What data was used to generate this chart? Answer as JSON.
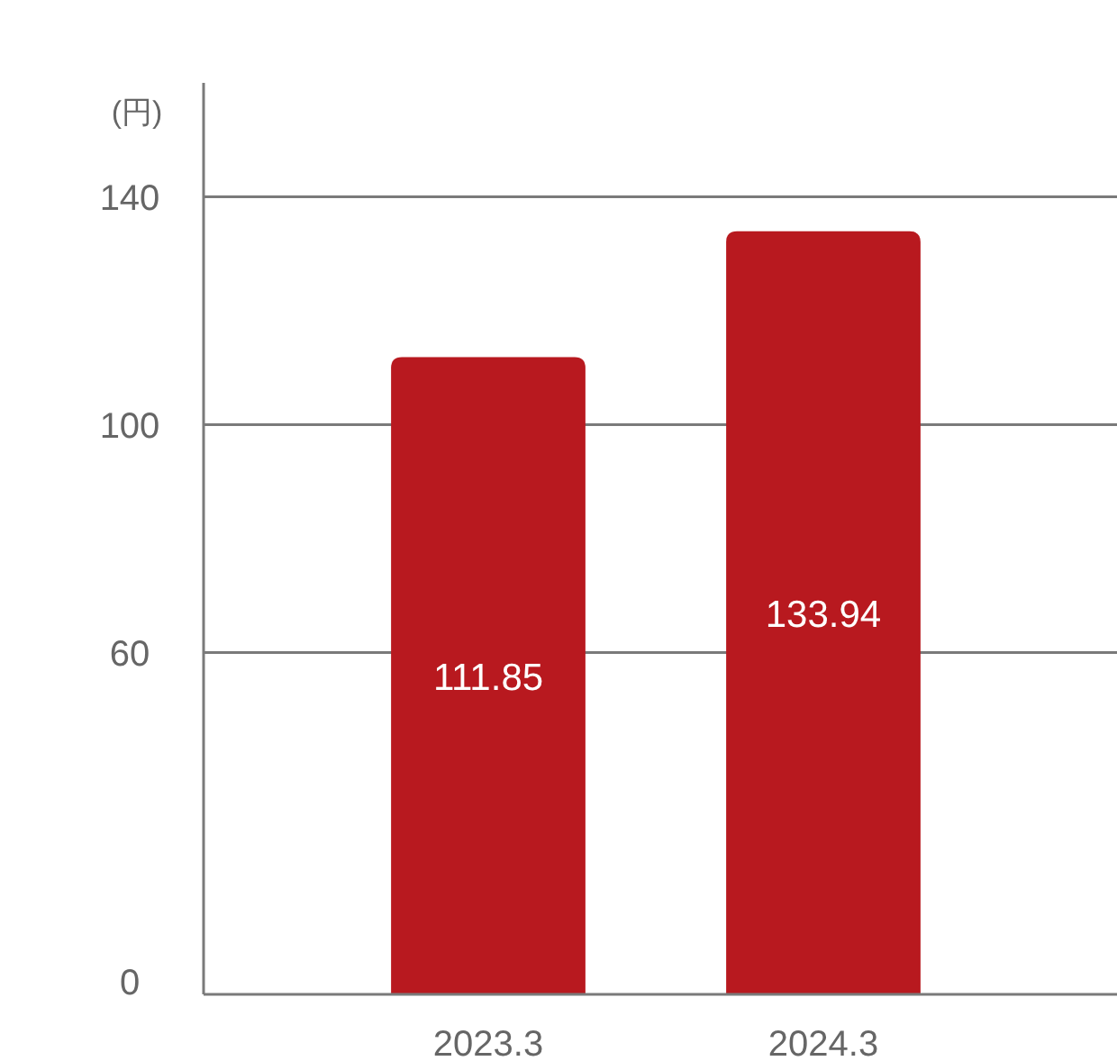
{
  "chart_data": {
    "type": "bar",
    "ylabel": "(円)",
    "categories": [
      "2023.3",
      "2024.3"
    ],
    "values": [
      111.85,
      133.94
    ],
    "color": "#b8191f",
    "ylim": [
      0,
      160
    ],
    "yticks": [
      0,
      60,
      100,
      140
    ],
    "grid": "y",
    "data_labels": true
  }
}
